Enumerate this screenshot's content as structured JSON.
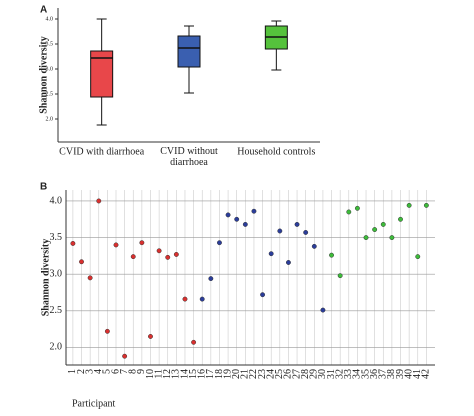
{
  "chart_data": [
    {
      "type": "box",
      "panel": "A",
      "ylabel": "Shannon diversity",
      "categories": [
        "CVID with diarrhoea",
        "CVID without diarrhoea",
        "Household controls"
      ],
      "boxes": [
        {
          "color": "#e8474a",
          "min": 1.88,
          "q1": 2.44,
          "median": 3.22,
          "q3": 3.36,
          "max": 4.0
        },
        {
          "color": "#3a5fb0",
          "min": 2.52,
          "q1": 3.04,
          "median": 3.42,
          "q3": 3.66,
          "max": 3.86
        },
        {
          "color": "#55c23c",
          "min": 2.98,
          "q1": 3.4,
          "median": 3.64,
          "q3": 3.86,
          "max": 3.96
        }
      ],
      "ylim": [
        1.54,
        4.22
      ],
      "yticks": [
        {
          "value": 2,
          "label": "2.0"
        },
        {
          "value": 2.5,
          "label": "2.5"
        },
        {
          "value": 3,
          "label": "3.0"
        },
        {
          "value": 3.5,
          "label": "3.5"
        },
        {
          "value": 4,
          "label": "4.0"
        }
      ]
    },
    {
      "type": "scatter",
      "panel": "B",
      "ylabel": "Shannon diversity",
      "xlabel": "Participant",
      "grid": true,
      "series": [
        {
          "color": "#d9302f",
          "x": [
            1,
            2,
            3,
            4,
            5,
            6,
            7,
            8,
            9,
            10,
            11,
            12,
            13,
            14,
            15
          ],
          "values": [
            3.42,
            3.17,
            2.95,
            4.0,
            2.22,
            3.4,
            1.88,
            3.24,
            3.43,
            2.15,
            3.32,
            3.23,
            3.27,
            2.66,
            2.07
          ]
        },
        {
          "color": "#2b3d9a",
          "x": [
            16,
            17,
            18,
            19,
            20,
            21,
            22,
            23,
            24,
            25,
            26,
            27,
            28,
            29,
            30
          ],
          "values": [
            2.66,
            2.94,
            3.43,
            3.81,
            3.75,
            3.68,
            3.86,
            2.72,
            3.28,
            3.59,
            3.16,
            3.68,
            3.57,
            3.38,
            2.51
          ]
        },
        {
          "color": "#3dbb3a",
          "x": [
            31,
            32,
            33,
            34,
            35,
            36,
            37,
            38,
            39,
            40,
            41,
            42
          ],
          "values": [
            3.26,
            2.98,
            3.85,
            3.9,
            3.5,
            3.61,
            3.68,
            3.5,
            3.75,
            3.94,
            3.24,
            3.94
          ]
        }
      ],
      "xlim": [
        0.2,
        43
      ],
      "xticks": [
        1,
        2,
        3,
        4,
        5,
        6,
        7,
        8,
        9,
        10,
        11,
        12,
        13,
        14,
        15,
        16,
        17,
        18,
        19,
        20,
        21,
        22,
        23,
        24,
        25,
        26,
        27,
        28,
        29,
        30,
        31,
        32,
        33,
        34,
        35,
        36,
        37,
        38,
        39,
        40,
        41,
        42
      ],
      "ylim": [
        1.76,
        4.15
      ],
      "yticks": [
        {
          "value": 2,
          "label": "2.0"
        },
        {
          "value": 2.5,
          "label": "2.5"
        },
        {
          "value": 3,
          "label": "3.0"
        },
        {
          "value": 3.5,
          "label": "3.5"
        },
        {
          "value": 4,
          "label": "4.0"
        }
      ]
    }
  ]
}
